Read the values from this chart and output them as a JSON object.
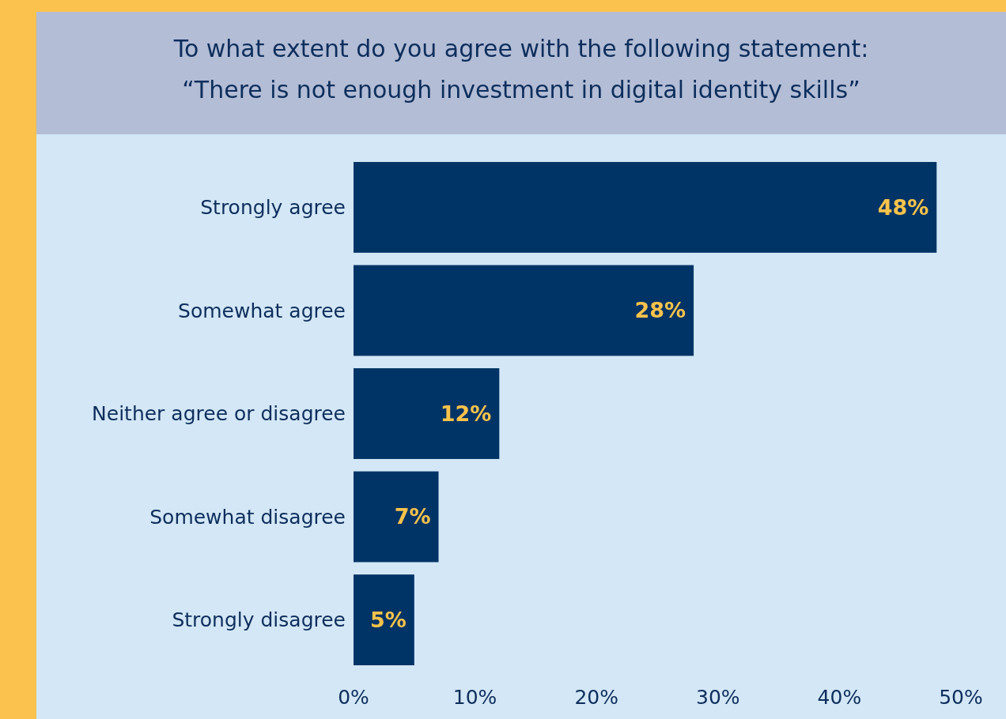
{
  "chart_data": {
    "type": "bar",
    "orientation": "horizontal",
    "title": "To what extent do you agree with the following statement:\n“There is not enough investment in digital identity skills”",
    "categories": [
      "Strongly agree",
      "Somewhat agree",
      "Neither agree or disagree",
      "Somewhat disagree",
      "Strongly disagree"
    ],
    "values": [
      48,
      28,
      12,
      7,
      5
    ],
    "value_labels": [
      "48%",
      "28%",
      "12%",
      "7%",
      "5%"
    ],
    "color": "#003466",
    "xlim": [
      0,
      50
    ],
    "xticks": [
      {
        "value": 0,
        "label": "0%"
      },
      {
        "value": 10,
        "label": "10%"
      },
      {
        "value": 20,
        "label": "20%"
      },
      {
        "value": 30,
        "label": "30%"
      },
      {
        "value": 40,
        "label": "40%"
      },
      {
        "value": 50,
        "label": "50%"
      }
    ]
  }
}
